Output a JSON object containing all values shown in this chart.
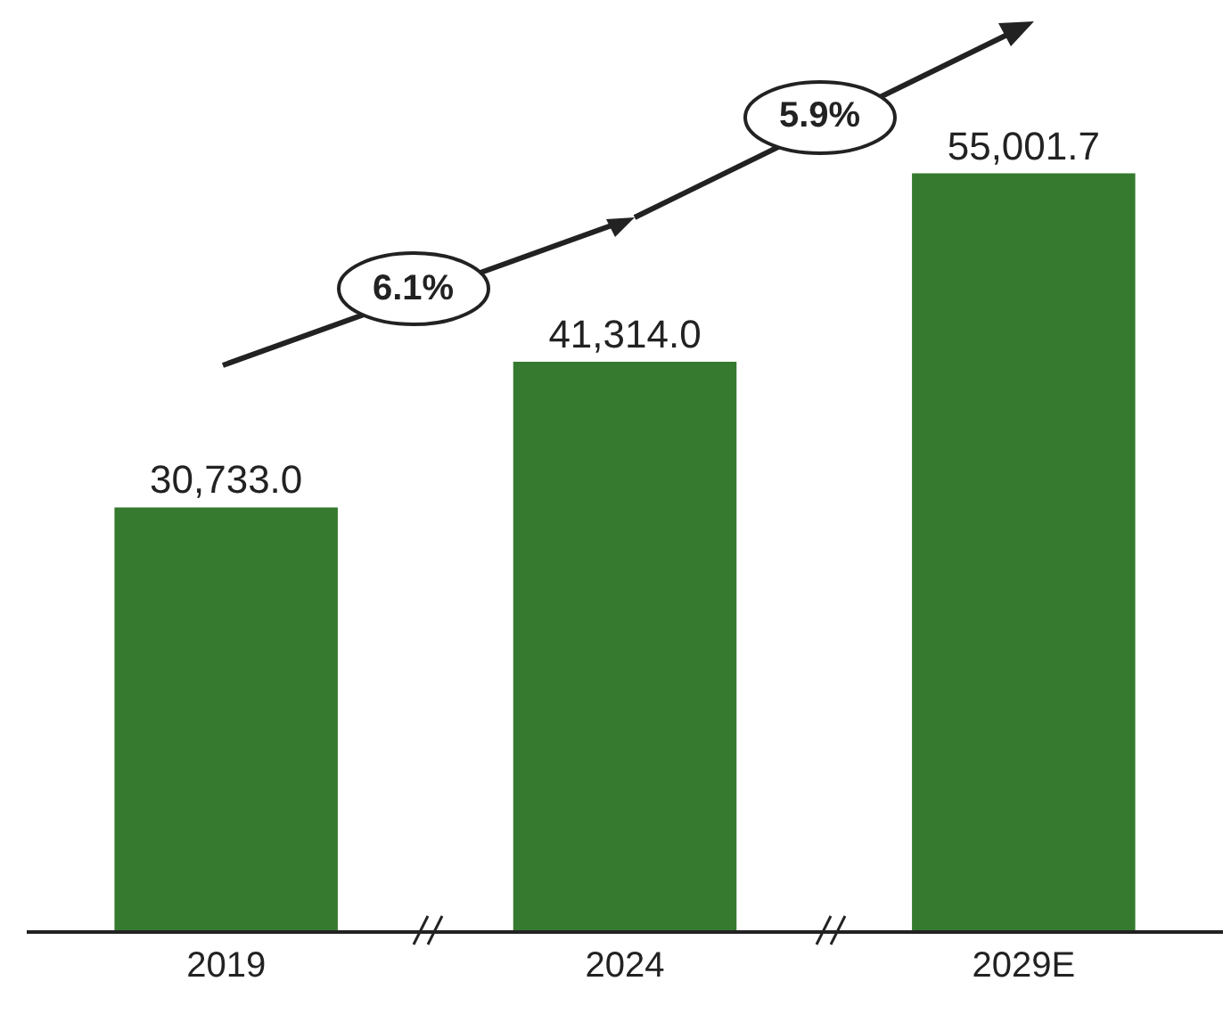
{
  "chart_data": {
    "type": "bar",
    "categories": [
      "2019",
      "2024",
      "2029E"
    ],
    "values": [
      30733.0,
      41314.0,
      55001.7
    ],
    "value_labels": [
      "30,733.0",
      "41,314.0",
      "55,001.7"
    ],
    "color": "#357a2e",
    "annotations": [
      "6.1%",
      "5.9%"
    ],
    "legend": false
  }
}
